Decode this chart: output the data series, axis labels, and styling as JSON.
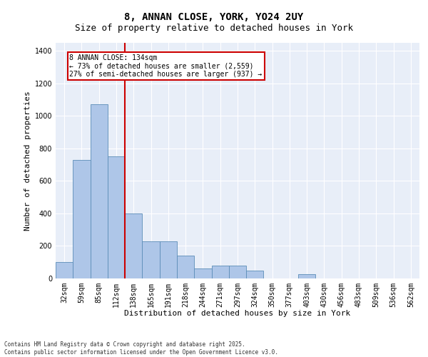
{
  "title1": "8, ANNAN CLOSE, YORK, YO24 2UY",
  "title2": "Size of property relative to detached houses in York",
  "xlabel": "Distribution of detached houses by size in York",
  "ylabel": "Number of detached properties",
  "categories": [
    "32sqm",
    "59sqm",
    "85sqm",
    "112sqm",
    "138sqm",
    "165sqm",
    "191sqm",
    "218sqm",
    "244sqm",
    "271sqm",
    "297sqm",
    "324sqm",
    "350sqm",
    "377sqm",
    "403sqm",
    "430sqm",
    "456sqm",
    "483sqm",
    "509sqm",
    "536sqm",
    "562sqm"
  ],
  "values": [
    100,
    730,
    1070,
    750,
    400,
    230,
    230,
    140,
    60,
    80,
    80,
    50,
    0,
    0,
    25,
    0,
    0,
    0,
    0,
    0,
    0
  ],
  "bar_color": "#aec6e8",
  "bar_edge_color": "#5b8db8",
  "vline_color": "#cc0000",
  "annotation_line1": "8 ANNAN CLOSE: 134sqm",
  "annotation_line2": "← 73% of detached houses are smaller (2,559)",
  "annotation_line3": "27% of semi-detached houses are larger (937) →",
  "annotation_box_color": "#cc0000",
  "ylim": [
    0,
    1450
  ],
  "yticks": [
    0,
    200,
    400,
    600,
    800,
    1000,
    1200,
    1400
  ],
  "footer1": "Contains HM Land Registry data © Crown copyright and database right 2025.",
  "footer2": "Contains public sector information licensed under the Open Government Licence v3.0.",
  "bg_color": "#e8eef8",
  "title_fontsize": 10,
  "subtitle_fontsize": 9,
  "tick_fontsize": 7,
  "label_fontsize": 8,
  "footer_fontsize": 5.5
}
